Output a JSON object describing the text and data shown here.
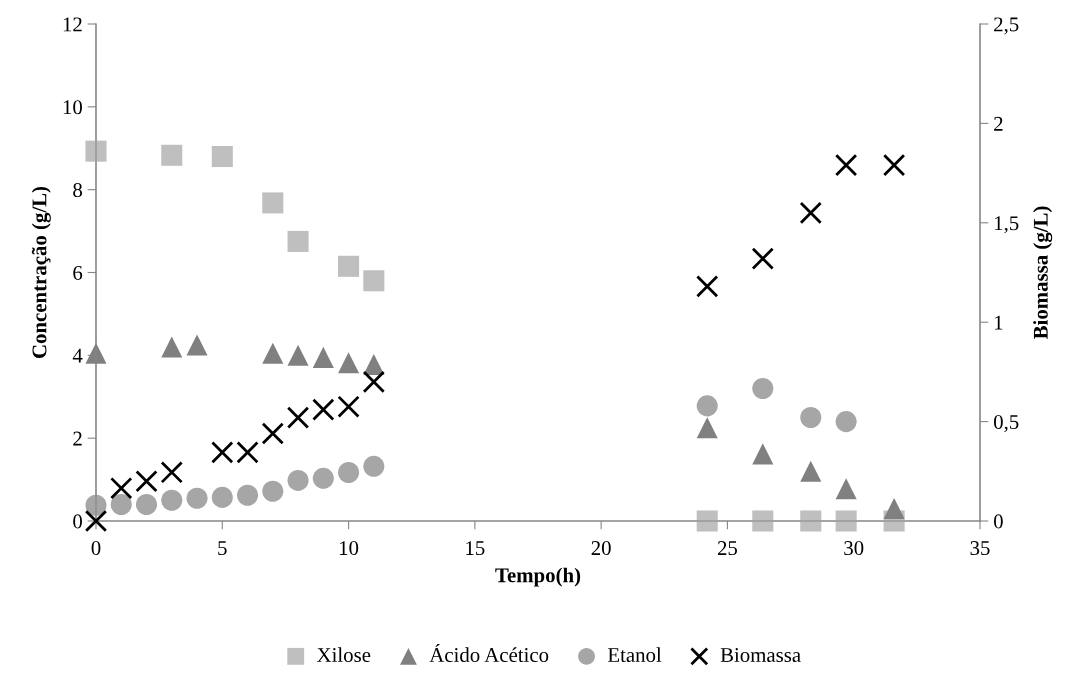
{
  "chart_data": {
    "type": "scatter",
    "xlabel": "Tempo(h)",
    "ylabel": "Concentração (g/L)",
    "y2label": "Biomassa (g/L)",
    "xlim": [
      0,
      35
    ],
    "xticks": [
      0,
      5,
      10,
      15,
      20,
      25,
      30,
      35
    ],
    "ylim": [
      0,
      12
    ],
    "yticks": [
      0,
      2,
      4,
      6,
      8,
      10,
      12
    ],
    "y2lim": [
      0,
      2.5
    ],
    "y2ticks": [
      0,
      {
        "value": 0.5,
        "label": "0,5"
      },
      1,
      {
        "value": 1.5,
        "label": "1,5"
      },
      2,
      {
        "value": 2.5,
        "label": "2,5"
      }
    ],
    "grid": false,
    "legend": "bottom",
    "series": [
      {
        "name": "Xilose",
        "color": "#bfbfbf",
        "marker": "square",
        "x": [
          0,
          3,
          5,
          7,
          8,
          10,
          11,
          24.2,
          26.4,
          28.3,
          29.7,
          31.6
        ],
        "values": [
          8.93,
          8.83,
          8.8,
          7.68,
          6.75,
          6.15,
          5.8,
          0,
          0,
          0,
          0,
          0
        ]
      },
      {
        "name": "Ácido Acético",
        "color": "#808080",
        "marker": "triangle",
        "x": [
          0,
          3,
          4,
          7,
          8,
          9,
          10,
          11,
          24.2,
          26.4,
          28.3,
          29.7,
          31.6
        ],
        "values": [
          4.05,
          4.2,
          4.25,
          4.05,
          4.0,
          3.95,
          3.82,
          3.78,
          2.25,
          1.62,
          1.2,
          0.78,
          0.3
        ]
      },
      {
        "name": "Etanol",
        "color": "#a6a6a6",
        "marker": "circle",
        "x": [
          0,
          1,
          2,
          3,
          4,
          5,
          6,
          7,
          8,
          9,
          10,
          11,
          24.2,
          26.4,
          28.3,
          29.7
        ],
        "values": [
          0.38,
          0.4,
          0.4,
          0.5,
          0.55,
          0.57,
          0.62,
          0.72,
          0.98,
          1.03,
          1.17,
          1.32,
          2.78,
          3.2,
          2.5,
          2.4
        ]
      },
      {
        "name": "Biomassa",
        "color": "#000000",
        "marker": "cross",
        "axis": "y2",
        "x": [
          0,
          1,
          2,
          3,
          5,
          6,
          7,
          8,
          9,
          10,
          11,
          24.2,
          26.4,
          28.3,
          29.7,
          31.6
        ],
        "values": [
          0,
          0.165,
          0.2,
          0.245,
          0.345,
          0.345,
          0.44,
          0.52,
          0.56,
          0.575,
          0.7,
          1.18,
          1.32,
          1.55,
          1.79,
          1.79
        ]
      }
    ]
  }
}
